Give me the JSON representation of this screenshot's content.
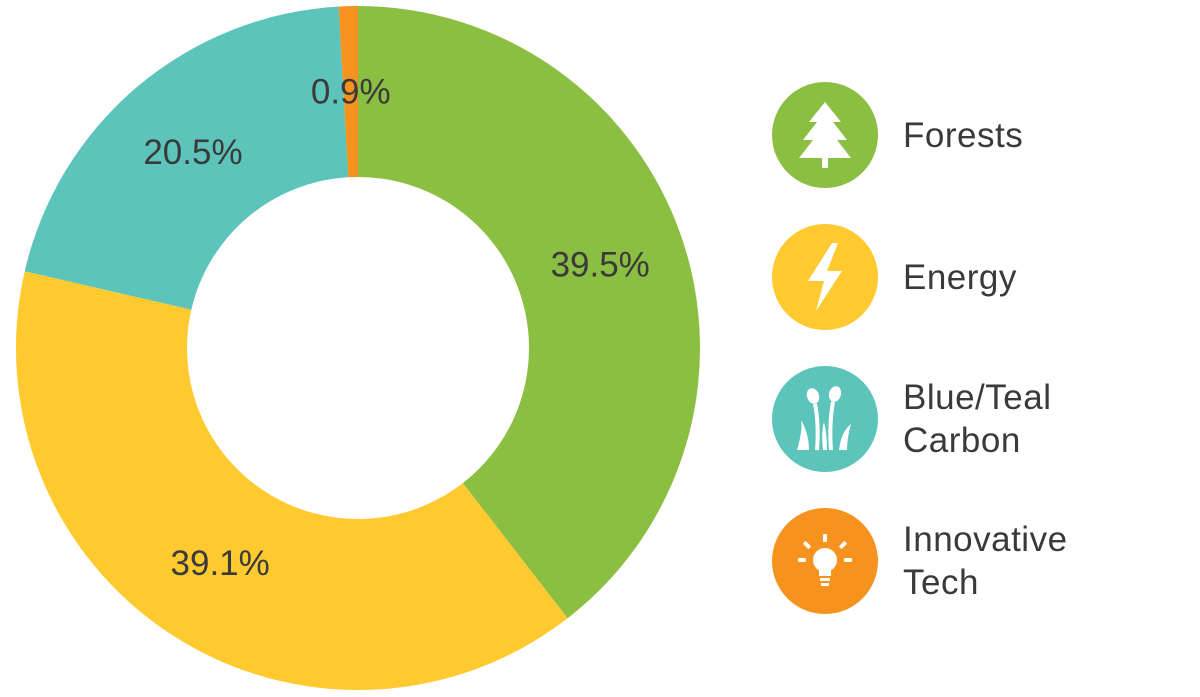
{
  "chart_data": {
    "type": "pie",
    "donut": true,
    "start_angle_deg": 0,
    "direction": "clockwise",
    "slices": [
      {
        "name": "Forests",
        "value": 39.5,
        "label": "39.5%",
        "color": "#8BBF41",
        "icon": "tree-icon"
      },
      {
        "name": "Energy",
        "value": 39.1,
        "label": "39.1%",
        "color": "#FFC930",
        "icon": "lightning-bolt-icon"
      },
      {
        "name": "Blue/Teal Carbon",
        "value": 20.5,
        "label": "20.5%",
        "color": "#5CC4BB",
        "icon": "cattail-grass-icon"
      },
      {
        "name": "Innovative Tech",
        "value": 0.9,
        "label": "0.9%",
        "color": "#F6921E",
        "icon": "lightbulb-icon"
      }
    ],
    "legend_placement": "right"
  },
  "legend": {
    "items": [
      {
        "line1": "Forests",
        "line2": ""
      },
      {
        "line1": "Energy",
        "line2": ""
      },
      {
        "line1": "Blue/Teal",
        "line2": "Carbon"
      },
      {
        "line1": "Innovative",
        "line2": "Tech"
      }
    ]
  }
}
